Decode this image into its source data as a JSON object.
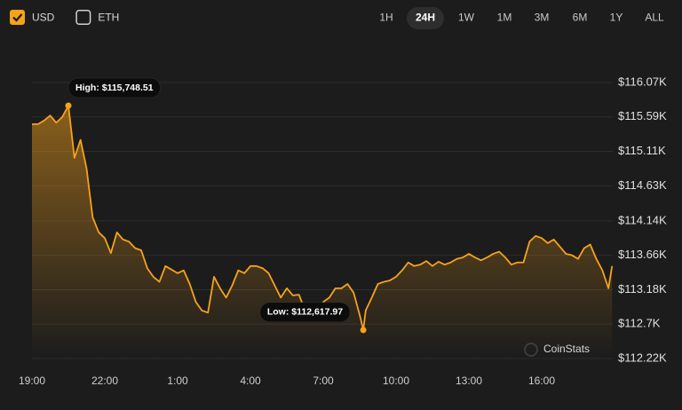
{
  "controls": {
    "currencies": [
      {
        "label": "USD",
        "checked": true
      },
      {
        "label": "ETH",
        "checked": false
      }
    ],
    "ranges": [
      "1H",
      "24H",
      "1W",
      "1M",
      "3M",
      "6M",
      "1Y",
      "ALL"
    ],
    "selected_range": "24H"
  },
  "chart_data": {
    "type": "line",
    "fill": true,
    "color": "#f7a21b",
    "grid": true,
    "watermark": "CoinStats",
    "x": [
      0,
      0.25,
      0.5,
      0.75,
      1,
      1.25,
      1.5,
      1.75,
      2,
      2.25,
      2.5,
      2.75,
      3,
      3.25,
      3.5,
      3.75,
      4,
      4.25,
      4.5,
      4.75,
      5,
      5.25,
      5.5,
      5.75,
      6,
      6.25,
      6.5,
      6.75,
      7,
      7.25,
      7.5,
      7.75,
      8,
      8.25,
      8.5,
      8.75,
      9,
      9.25,
      9.5,
      9.75,
      10,
      10.25,
      10.5,
      10.75,
      11,
      11.25,
      11.5,
      11.75,
      12,
      12.25,
      12.5,
      12.75,
      13,
      13.25,
      13.5,
      13.65,
      13.75,
      14,
      14.25,
      14.5,
      14.75,
      15,
      15.25,
      15.5,
      15.75,
      16,
      16.25,
      16.5,
      16.75,
      17,
      17.25,
      17.5,
      17.75,
      18,
      18.25,
      18.5,
      18.75,
      19,
      19.25,
      19.5,
      19.75,
      20,
      20.25,
      20.5,
      20.75,
      21,
      21.25,
      21.5,
      21.75,
      22,
      22.25,
      22.5,
      22.75,
      23,
      23.25,
      23.5,
      23.75,
      23.9
    ],
    "values": [
      115490,
      115490,
      115540,
      115610,
      115510,
      115590,
      115748.51,
      115020,
      115270,
      114870,
      114190,
      113980,
      113900,
      113690,
      113980,
      113880,
      113850,
      113760,
      113730,
      113480,
      113360,
      113290,
      113510,
      113460,
      113410,
      113450,
      113260,
      113010,
      112890,
      112860,
      113360,
      113200,
      113070,
      113240,
      113450,
      113410,
      113510,
      113510,
      113480,
      113410,
      113240,
      113070,
      113200,
      113100,
      113110,
      112890,
      112950,
      112790,
      113010,
      113070,
      113200,
      113200,
      113260,
      113140,
      112830,
      112617.97,
      112890,
      113070,
      113260,
      113290,
      113310,
      113360,
      113450,
      113560,
      113510,
      113530,
      113580,
      113510,
      113570,
      113530,
      113560,
      113610,
      113630,
      113680,
      113630,
      113590,
      113630,
      113680,
      113710,
      113630,
      113530,
      113560,
      113560,
      113850,
      113930,
      113900,
      113830,
      113880,
      113780,
      113680,
      113660,
      113610,
      113760,
      113810,
      113610,
      113450,
      113200,
      113510
    ],
    "xlim": [
      0,
      24
    ],
    "xticks": [
      {
        "value": 0,
        "label": "19:00"
      },
      {
        "value": 3,
        "label": "22:00"
      },
      {
        "value": 6,
        "label": "1:00"
      },
      {
        "value": 9,
        "label": "4:00"
      },
      {
        "value": 12,
        "label": "7:00"
      },
      {
        "value": 15,
        "label": "10:00"
      },
      {
        "value": 18,
        "label": "13:00"
      },
      {
        "value": 21,
        "label": "16:00"
      }
    ],
    "ylim": [
      112220,
      116070
    ],
    "yticks": [
      {
        "value": 112220,
        "label": "$112.22K"
      },
      {
        "value": 112700,
        "label": "$112.7K"
      },
      {
        "value": 113180,
        "label": "$113.18K"
      },
      {
        "value": 113660,
        "label": "$113.66K"
      },
      {
        "value": 114140,
        "label": "$114.14K"
      },
      {
        "value": 114630,
        "label": "$114.63K"
      },
      {
        "value": 115110,
        "label": "$115.11K"
      },
      {
        "value": 115590,
        "label": "$115.59K"
      },
      {
        "value": 116070,
        "label": "$116.07K"
      }
    ],
    "annotations": [
      {
        "label": "High: $115,748.51",
        "x": 1.5,
        "value": 115748.51,
        "side": "right"
      },
      {
        "label": "Low: $112,617.97",
        "x": 13.65,
        "value": 112617.97,
        "side": "left"
      }
    ]
  }
}
